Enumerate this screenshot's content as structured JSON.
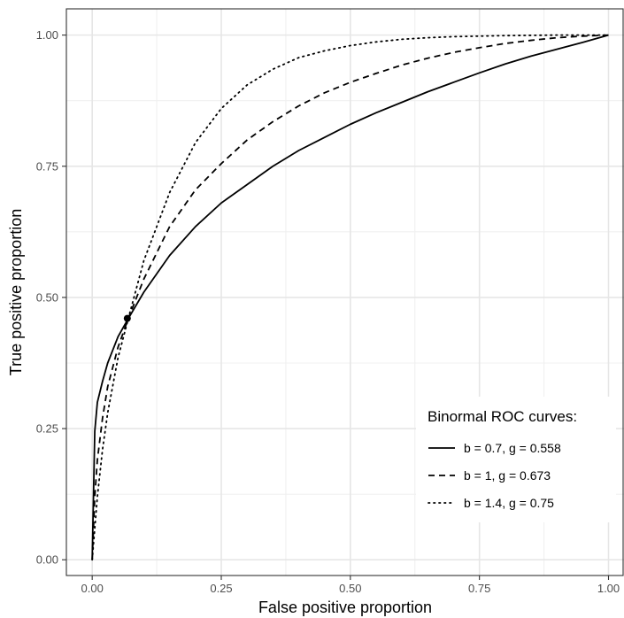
{
  "chart_data": {
    "type": "line",
    "title": "",
    "xlabel": "False positive proportion",
    "ylabel": "True positive proportion",
    "xlim": [
      -0.05,
      1.03
    ],
    "ylim": [
      -0.03,
      1.05
    ],
    "x_ticks": [
      0,
      0.25,
      0.5,
      0.75,
      1
    ],
    "x_tick_labels": [
      "0.00",
      "0.25",
      "0.50",
      "0.75",
      "1.00"
    ],
    "y_ticks": [
      0,
      0.25,
      0.5,
      0.75,
      1
    ],
    "y_tick_labels": [
      "0.00",
      "0.25",
      "0.50",
      "0.75",
      "1.00"
    ],
    "grid": true,
    "legend": {
      "title": "Binormal ROC curves:",
      "placement": "bottom-right"
    },
    "series": [
      {
        "name": "b = 0.7, g = 0.558",
        "line_style": "solid",
        "x": [
          0,
          0.005,
          0.01,
          0.02,
          0.03,
          0.05,
          0.07,
          0.1,
          0.15,
          0.2,
          0.25,
          0.3,
          0.35,
          0.4,
          0.45,
          0.5,
          0.55,
          0.6,
          0.65,
          0.7,
          0.75,
          0.8,
          0.85,
          0.9,
          0.95,
          1
        ],
        "y": [
          0,
          0.245,
          0.3,
          0.34,
          0.375,
          0.425,
          0.46,
          0.51,
          0.58,
          0.635,
          0.68,
          0.715,
          0.75,
          0.78,
          0.805,
          0.83,
          0.852,
          0.872,
          0.892,
          0.91,
          0.928,
          0.945,
          0.96,
          0.973,
          0.986,
          1
        ]
      },
      {
        "name": "b = 1, g = 0.673",
        "line_style": "dashed",
        "x": [
          0,
          0.005,
          0.01,
          0.02,
          0.03,
          0.05,
          0.07,
          0.1,
          0.15,
          0.2,
          0.25,
          0.3,
          0.35,
          0.4,
          0.45,
          0.5,
          0.55,
          0.6,
          0.65,
          0.7,
          0.75,
          0.8,
          0.85,
          0.9,
          0.95,
          1
        ],
        "y": [
          0,
          0.12,
          0.19,
          0.27,
          0.33,
          0.405,
          0.46,
          0.535,
          0.635,
          0.705,
          0.755,
          0.8,
          0.835,
          0.865,
          0.89,
          0.91,
          0.927,
          0.943,
          0.956,
          0.967,
          0.976,
          0.984,
          0.99,
          0.995,
          0.998,
          1
        ]
      },
      {
        "name": "b = 1.4, g = 0.75",
        "line_style": "dotted",
        "x": [
          0,
          0.005,
          0.01,
          0.02,
          0.03,
          0.05,
          0.07,
          0.1,
          0.15,
          0.2,
          0.25,
          0.3,
          0.35,
          0.4,
          0.45,
          0.5,
          0.55,
          0.6,
          0.65,
          0.7,
          0.75,
          0.8,
          0.85,
          0.9,
          0.95,
          1
        ],
        "y": [
          0,
          0.06,
          0.12,
          0.21,
          0.28,
          0.385,
          0.46,
          0.57,
          0.7,
          0.795,
          0.86,
          0.905,
          0.935,
          0.957,
          0.97,
          0.98,
          0.987,
          0.992,
          0.995,
          0.997,
          0.998,
          0.999,
          0.9995,
          1,
          1,
          1
        ]
      }
    ],
    "annotations": [
      {
        "type": "point",
        "x": 0.068,
        "y": 0.46
      }
    ]
  }
}
